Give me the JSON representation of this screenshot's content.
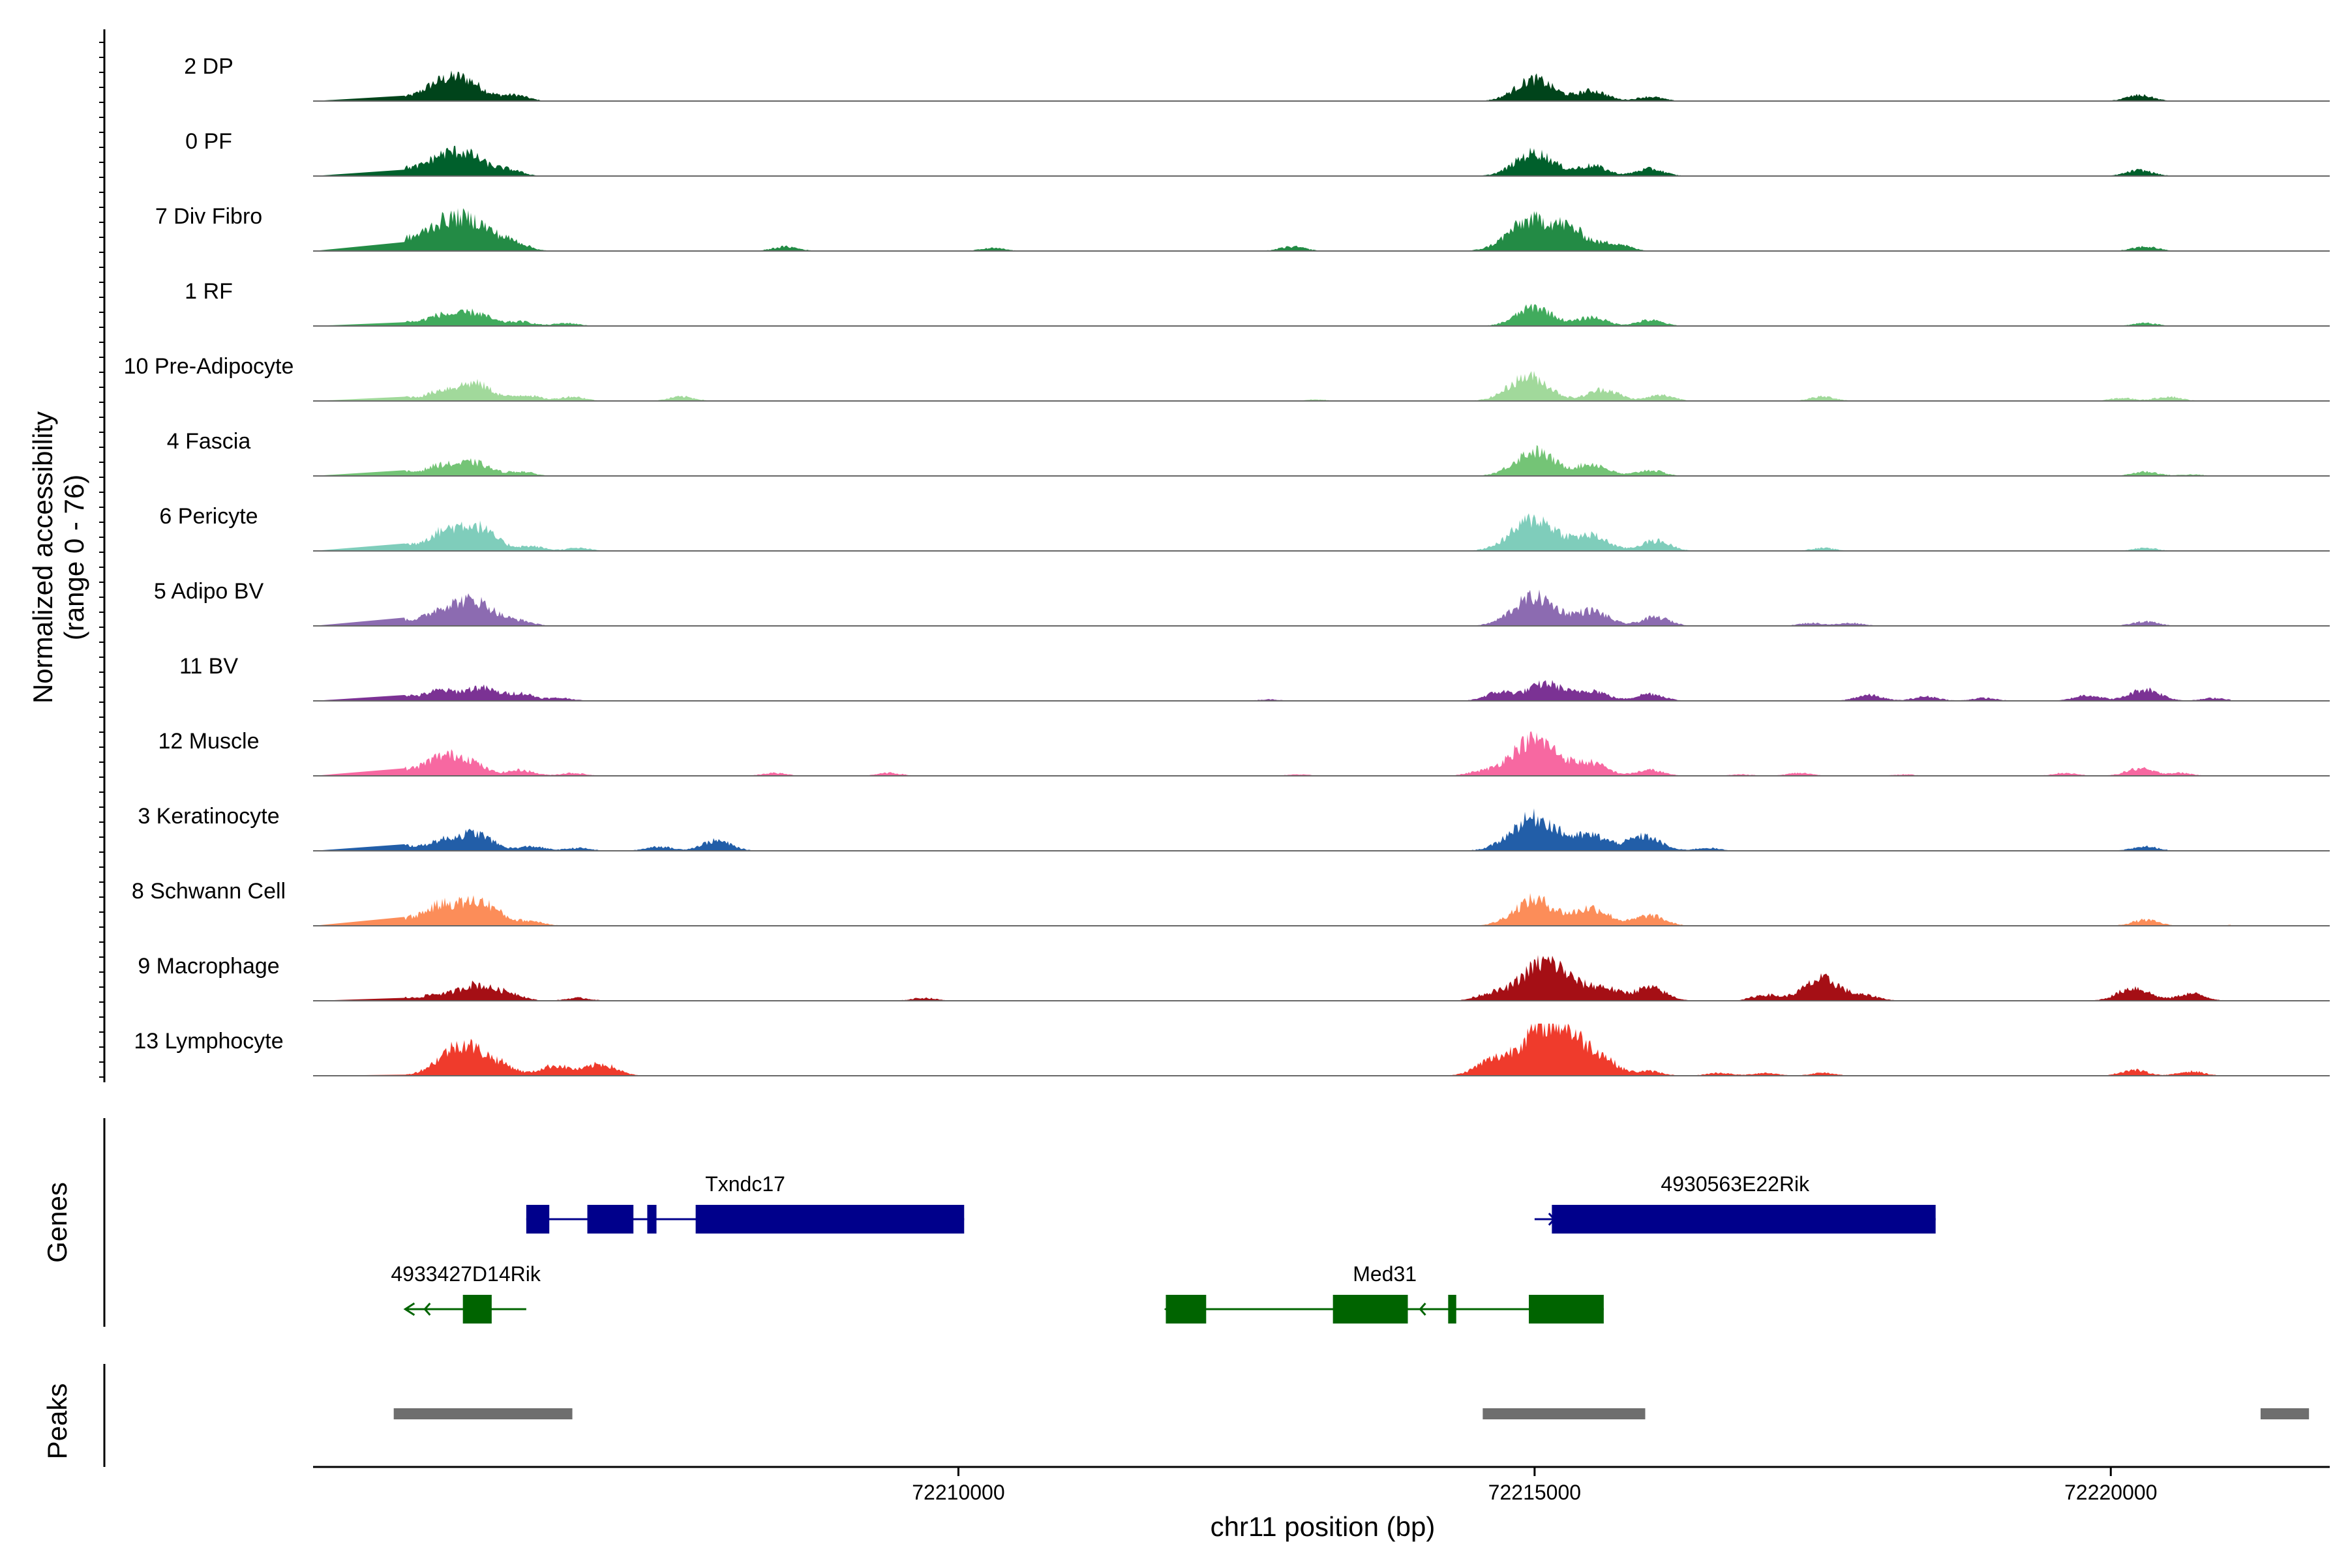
{
  "chart_data": {
    "type": "coverage",
    "chromosome": "chr11",
    "xlabel": "chr11 position (bp)",
    "ylabel": "Normalized accessibility",
    "ylabel_range": "(range 0 - 76)",
    "xlim": [
      72204400,
      72221900
    ],
    "x_ticks": [
      {
        "value": 72210000,
        "label": "72210000"
      },
      {
        "value": 72215000,
        "label": "72215000"
      },
      {
        "value": 72220000,
        "label": "72220000"
      }
    ],
    "tracks": [
      {
        "name": "2 DP",
        "color": "#00441b",
        "peaks": [
          [
            72205100,
            3
          ],
          [
            72205450,
            8
          ],
          [
            72205700,
            15
          ],
          [
            72206150,
            4
          ],
          [
            72215000,
            15
          ],
          [
            72215500,
            7
          ],
          [
            72216000,
            3
          ],
          [
            72220250,
            4
          ]
        ]
      },
      {
        "name": "0 PF",
        "color": "#00602c",
        "peaks": [
          [
            72205150,
            5
          ],
          [
            72205500,
            11
          ],
          [
            72205750,
            13
          ],
          [
            72206100,
            4
          ],
          [
            72215000,
            16
          ],
          [
            72215500,
            7
          ],
          [
            72216000,
            5
          ],
          [
            72220250,
            4
          ]
        ]
      },
      {
        "name": "7 Div Fibro",
        "color": "#238b45",
        "peaks": [
          [
            72205150,
            6
          ],
          [
            72205500,
            16
          ],
          [
            72205800,
            18
          ],
          [
            72206150,
            5
          ],
          [
            72208500,
            3
          ],
          [
            72210300,
            2
          ],
          [
            72212900,
            3
          ],
          [
            72214950,
            20
          ],
          [
            72215300,
            14
          ],
          [
            72215700,
            5
          ],
          [
            72220300,
            3
          ]
        ]
      },
      {
        "name": "1 RF",
        "color": "#41ab5d",
        "peaks": [
          [
            72205150,
            3
          ],
          [
            72205500,
            7
          ],
          [
            72205800,
            9
          ],
          [
            72206200,
            3
          ],
          [
            72206600,
            2
          ],
          [
            72215000,
            13
          ],
          [
            72215500,
            6
          ],
          [
            72216000,
            4
          ],
          [
            72220300,
            2
          ]
        ]
      },
      {
        "name": "10 Pre-Adipocyte",
        "color": "#a1d99b",
        "peaks": [
          [
            72205150,
            3
          ],
          [
            72205500,
            6
          ],
          [
            72205800,
            12
          ],
          [
            72206250,
            4
          ],
          [
            72206650,
            3
          ],
          [
            72207600,
            3
          ],
          [
            72213100,
            1
          ],
          [
            72214950,
            17
          ],
          [
            72215600,
            8
          ],
          [
            72216100,
            4
          ],
          [
            72217500,
            3
          ],
          [
            72220100,
            2
          ],
          [
            72220500,
            3
          ],
          [
            72221200,
            1
          ]
        ]
      },
      {
        "name": "4 Fascia",
        "color": "#74c476",
        "peaks": [
          [
            72205150,
            3
          ],
          [
            72205500,
            7
          ],
          [
            72205800,
            9
          ],
          [
            72206200,
            3
          ],
          [
            72215000,
            17
          ],
          [
            72215500,
            8
          ],
          [
            72216000,
            4
          ],
          [
            72220300,
            3
          ],
          [
            72220700,
            1
          ]
        ]
      },
      {
        "name": "6 Pericyte",
        "color": "#7fcdbb",
        "peaks": [
          [
            72205150,
            4
          ],
          [
            72205500,
            10
          ],
          [
            72205800,
            17
          ],
          [
            72206300,
            3
          ],
          [
            72206700,
            2
          ],
          [
            72215000,
            22
          ],
          [
            72215500,
            10
          ],
          [
            72216050,
            7
          ],
          [
            72217500,
            2
          ],
          [
            72220300,
            2
          ]
        ]
      },
      {
        "name": "5 Adipo BV",
        "color": "#8c6bb1",
        "peaks": [
          [
            72205150,
            4
          ],
          [
            72205500,
            9
          ],
          [
            72205800,
            17
          ],
          [
            72206200,
            3
          ],
          [
            72215000,
            20
          ],
          [
            72215500,
            10
          ],
          [
            72216050,
            6
          ],
          [
            72217400,
            2
          ],
          [
            72217750,
            2
          ],
          [
            72220300,
            3
          ]
        ]
      },
      {
        "name": "11 BV",
        "color": "#7b3294",
        "peaks": [
          [
            72205150,
            4
          ],
          [
            72205500,
            7
          ],
          [
            72205850,
            9
          ],
          [
            72206200,
            5
          ],
          [
            72206550,
            2
          ],
          [
            72212700,
            1
          ],
          [
            72214700,
            6
          ],
          [
            72215100,
            12
          ],
          [
            72215500,
            7
          ],
          [
            72216000,
            5
          ],
          [
            72217900,
            4
          ],
          [
            72218400,
            3
          ],
          [
            72218900,
            2
          ],
          [
            72219800,
            4
          ],
          [
            72220300,
            8
          ],
          [
            72220900,
            2
          ]
        ]
      },
      {
        "name": "12 Muscle",
        "color": "#f768a1",
        "peaks": [
          [
            72205100,
            5
          ],
          [
            72205500,
            12
          ],
          [
            72205750,
            9
          ],
          [
            72206200,
            4
          ],
          [
            72206650,
            2
          ],
          [
            72208400,
            2
          ],
          [
            72209400,
            2
          ],
          [
            72212950,
            1
          ],
          [
            72214500,
            2
          ],
          [
            72215000,
            25
          ],
          [
            72215500,
            8
          ],
          [
            72216000,
            4
          ],
          [
            72216800,
            1
          ],
          [
            72217300,
            2
          ],
          [
            72218200,
            1
          ],
          [
            72219600,
            2
          ],
          [
            72220250,
            5
          ],
          [
            72220600,
            2
          ]
        ]
      },
      {
        "name": "3 Keratinocyte",
        "color": "#225ea8",
        "peaks": [
          [
            72205150,
            4
          ],
          [
            72205500,
            6
          ],
          [
            72205800,
            12
          ],
          [
            72206300,
            3
          ],
          [
            72206700,
            2
          ],
          [
            72207400,
            3
          ],
          [
            72207900,
            7
          ],
          [
            72215000,
            23
          ],
          [
            72215500,
            10
          ],
          [
            72215950,
            10
          ],
          [
            72216500,
            2
          ],
          [
            72220300,
            3
          ]
        ]
      },
      {
        "name": "8 Schwann Cell",
        "color": "#fc8d59",
        "peaks": [
          [
            72205150,
            4
          ],
          [
            72205500,
            13
          ],
          [
            72205850,
            16
          ],
          [
            72206300,
            3
          ],
          [
            72215000,
            18
          ],
          [
            72215500,
            12
          ],
          [
            72216000,
            7
          ],
          [
            72220300,
            4
          ],
          [
            72221200,
            2
          ]
        ]
      },
      {
        "name": "9 Macrophage",
        "color": "#a50f15",
        "peaks": [
          [
            72205100,
            3
          ],
          [
            72205450,
            4
          ],
          [
            72205800,
            11
          ],
          [
            72206100,
            5
          ],
          [
            72206700,
            2
          ],
          [
            72209700,
            2
          ],
          [
            72214600,
            4
          ],
          [
            72215100,
            27
          ],
          [
            72215600,
            8
          ],
          [
            72216000,
            9
          ],
          [
            72217000,
            4
          ],
          [
            72217500,
            15
          ],
          [
            72217900,
            3
          ],
          [
            72220200,
            9
          ],
          [
            72220700,
            5
          ]
        ]
      },
      {
        "name": "13 Lymphocyte",
        "color": "#ef3b2c",
        "peaks": [
          [
            72205700,
            22
          ],
          [
            72206050,
            5
          ],
          [
            72206500,
            7
          ],
          [
            72206900,
            8
          ],
          [
            72214600,
            7
          ],
          [
            72215150,
            38
          ],
          [
            72215600,
            6
          ],
          [
            72216000,
            3
          ],
          [
            72216600,
            2
          ],
          [
            72217000,
            2
          ],
          [
            72217500,
            2
          ],
          [
            72220200,
            4
          ],
          [
            72220700,
            3
          ]
        ]
      }
    ],
    "genes": [
      {
        "name": "Txndc17",
        "strand": "+",
        "color": "#00008b",
        "row": 0,
        "start": 72206250,
        "end": 72210050,
        "exons": [
          [
            72206250,
            72206450
          ],
          [
            72206780,
            72207180
          ],
          [
            72207300,
            72207380
          ],
          [
            72207720,
            72210050
          ]
        ]
      },
      {
        "name": "4930563E22Rik",
        "strand": "+",
        "color": "#00008b",
        "row": 0,
        "start": 72215000,
        "end": 72218480,
        "exons": [
          [
            72215150,
            72218480
          ]
        ]
      },
      {
        "name": "4933427D14Rik",
        "strand": "-",
        "color": "#006400",
        "row": 1,
        "start": 72205200,
        "end": 72206250,
        "exons": [
          [
            72205700,
            72205950
          ]
        ]
      },
      {
        "name": "Med31",
        "strand": "-",
        "color": "#006400",
        "row": 1,
        "start": 72211800,
        "end": 72215600,
        "exons": [
          [
            72211800,
            72212150
          ],
          [
            72213250,
            72213900
          ],
          [
            72214250,
            72214320
          ],
          [
            72214950,
            72215600
          ]
        ]
      }
    ],
    "peaks": [
      [
        72205100,
        72206650
      ],
      [
        72214550,
        72215960
      ],
      [
        72221300,
        72221720
      ]
    ],
    "panel_labels": {
      "genes": "Genes",
      "peaks": "Peaks"
    }
  }
}
